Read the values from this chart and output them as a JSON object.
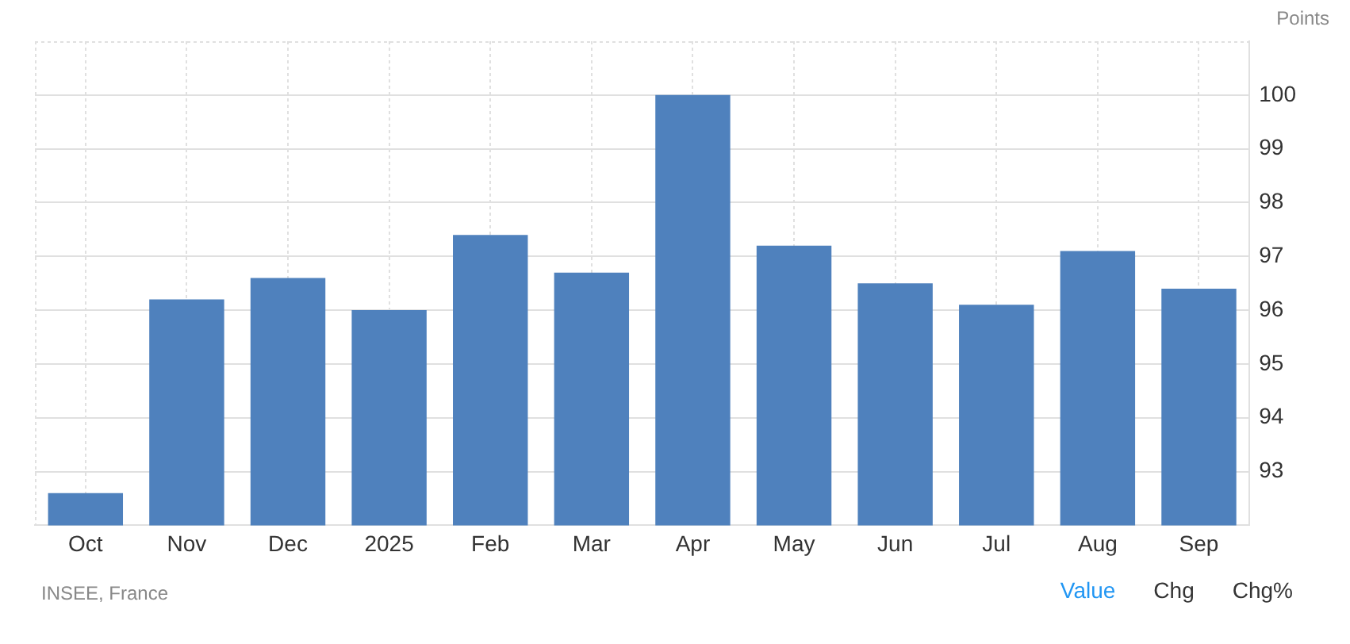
{
  "chart_data": {
    "type": "bar",
    "ylabel": "Points",
    "categories": [
      "Oct",
      "Nov",
      "Dec",
      "2025",
      "Feb",
      "Mar",
      "Apr",
      "May",
      "Jun",
      "Jul",
      "Aug",
      "Sep"
    ],
    "values": [
      92.6,
      96.2,
      96.6,
      96.0,
      97.4,
      96.7,
      100.0,
      97.2,
      96.5,
      96.1,
      97.1,
      96.4
    ],
    "color": "#4f81bd",
    "ylim": [
      92,
      101
    ],
    "yticks": [
      93,
      94,
      95,
      96,
      97,
      98,
      99,
      100
    ],
    "grid": true,
    "annotations": [
      "INSEE, France",
      "Value",
      "Chg",
      "Chg%"
    ]
  }
}
